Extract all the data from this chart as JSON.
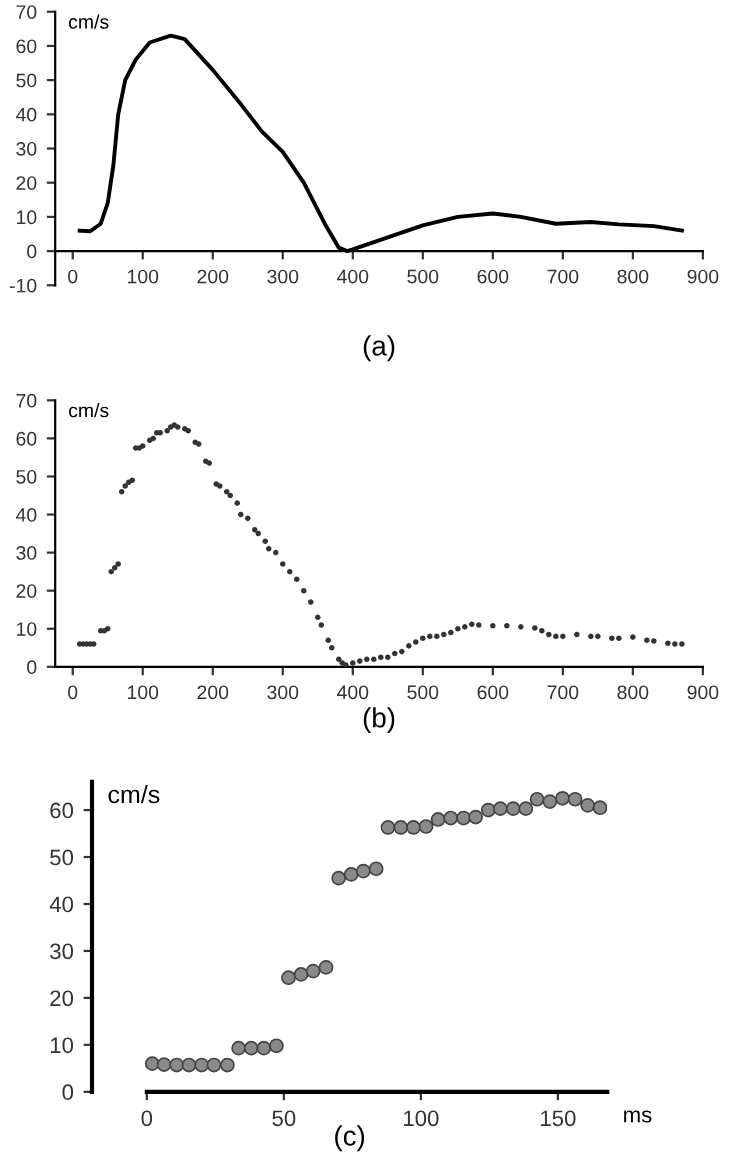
{
  "chart_data": [
    {
      "type": "line",
      "title": "(a)",
      "ylabel": "cm/s",
      "xlim": [
        -25,
        900
      ],
      "ylim": [
        -10,
        70
      ],
      "xticks": [
        0,
        100,
        200,
        300,
        400,
        500,
        600,
        700,
        800,
        900
      ],
      "yticks": [
        -10,
        0,
        10,
        20,
        30,
        40,
        50,
        60,
        70
      ],
      "grid": false,
      "marker": "none",
      "line_style": "solid",
      "series": [
        {
          "color": "#000000",
          "x": [
            10,
            25,
            40,
            50,
            58,
            65,
            75,
            90,
            110,
            140,
            160,
            200,
            240,
            270,
            300,
            330,
            360,
            380,
            392,
            400,
            450,
            500,
            550,
            600,
            640,
            690,
            740,
            780,
            830,
            870
          ],
          "values": [
            6,
            5.8,
            8,
            14,
            25,
            40,
            50,
            56,
            61,
            63,
            62,
            53,
            43,
            35,
            29,
            20,
            8,
            1,
            0,
            0.5,
            4,
            7.5,
            10,
            11,
            10,
            8,
            8.5,
            7.8,
            7.3,
            6
          ]
        }
      ]
    },
    {
      "type": "scatter",
      "title": "(b)",
      "ylabel": "cm/s",
      "xlim": [
        -25,
        900
      ],
      "ylim": [
        0,
        70
      ],
      "xticks": [
        0,
        100,
        200,
        300,
        400,
        500,
        600,
        700,
        800,
        900
      ],
      "yticks": [
        0,
        10,
        20,
        30,
        40,
        50,
        60,
        70
      ],
      "grid": false,
      "marker": "circle",
      "series": [
        {
          "color": "#333333",
          "x": [
            10,
            15,
            20,
            25,
            30,
            40,
            45,
            50,
            55,
            60,
            65,
            70,
            75,
            80,
            85,
            90,
            95,
            100,
            110,
            115,
            120,
            125,
            135,
            140,
            145,
            150,
            160,
            165,
            175,
            180,
            190,
            195,
            205,
            210,
            220,
            225,
            235,
            240,
            250,
            260,
            265,
            275,
            280,
            290,
            300,
            310,
            320,
            330,
            340,
            350,
            355,
            365,
            370,
            380,
            385,
            390,
            400,
            410,
            420,
            430,
            440,
            450,
            460,
            470,
            480,
            490,
            500,
            510,
            520,
            530,
            540,
            550,
            560,
            570,
            580,
            600,
            620,
            640,
            660,
            670,
            680,
            690,
            700,
            720,
            740,
            750,
            770,
            780,
            800,
            820,
            830,
            850,
            860,
            870
          ],
          "values": [
            6,
            6,
            6,
            6,
            6,
            9.5,
            9.5,
            10,
            25,
            26,
            27,
            46,
            47.5,
            48.5,
            49,
            57.5,
            57.5,
            58,
            59.5,
            60,
            61.5,
            61.5,
            62,
            63,
            63.5,
            63,
            62.5,
            62,
            59,
            58.5,
            54,
            53.5,
            48,
            47.5,
            46,
            45,
            43,
            40,
            39,
            36,
            35,
            33,
            31,
            30,
            27,
            25,
            23,
            20,
            17,
            13,
            11,
            7,
            5,
            2,
            1,
            0.5,
            1,
            1.5,
            2,
            2,
            2.5,
            2.5,
            3.5,
            4,
            5.5,
            6.5,
            7.5,
            8,
            8,
            8.5,
            9,
            10,
            10.5,
            11.2,
            11,
            10.8,
            10.8,
            10.5,
            10.2,
            9.5,
            8.5,
            8,
            8,
            8.5,
            8,
            8,
            7.5,
            7.5,
            7.8,
            7,
            6.8,
            6.2,
            6,
            6
          ]
        }
      ]
    },
    {
      "type": "scatter",
      "title": "(c)",
      "ylabel": "cm/s",
      "xlabel": "ms",
      "xlim": [
        -20,
        168
      ],
      "ylim": [
        0,
        66
      ],
      "xticks": [
        0,
        50,
        100,
        150
      ],
      "yticks": [
        0,
        10,
        20,
        30,
        40,
        50,
        60
      ],
      "grid": false,
      "marker": "circle",
      "series": [
        {
          "color": "#8a8a8a",
          "x": [
            2,
            6.3,
            10.9,
            15.4,
            20,
            24.5,
            29.4,
            33.5,
            38.1,
            42.7,
            47.3,
            51.7,
            56.3,
            60.7,
            65.4,
            70,
            74.6,
            79,
            83.7,
            88,
            92.7,
            97.3,
            101.9,
            106.3,
            110.9,
            115.6,
            120,
            124.6,
            129,
            133.7,
            138.3,
            142.4,
            147.1,
            151.7,
            156.3,
            160.9,
            165.4
          ],
          "values": [
            6,
            5.8,
            5.7,
            5.7,
            5.7,
            5.7,
            5.7,
            9.3,
            9.3,
            9.3,
            9.8,
            24.3,
            25,
            25.7,
            26.5,
            45.5,
            46.3,
            47,
            47.5,
            56.3,
            56.3,
            56.3,
            56.5,
            58,
            58.3,
            58.3,
            58.5,
            60,
            60.3,
            60.3,
            60.3,
            62.3,
            61.8,
            62.5,
            62.3,
            61,
            60.5
          ]
        }
      ]
    }
  ]
}
